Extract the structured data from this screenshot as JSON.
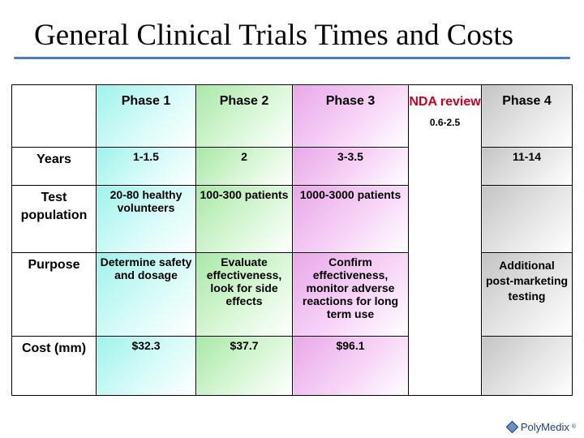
{
  "title": "General Clinical Trials Times and Costs",
  "header": {
    "corner": "",
    "phase1": "Phase 1",
    "phase2": "Phase 2",
    "phase3": "Phase 3",
    "nda_label": "NDA review",
    "nda_years": "0.6-2.5",
    "phase4": "Phase 4"
  },
  "rows": {
    "years": {
      "label": "Years",
      "p1": "1-1.5",
      "p2": "2",
      "p3": "3-3.5",
      "p4": "11-14"
    },
    "population": {
      "label": "Test population",
      "p1": "20-80 healthy volunteers",
      "p2": "100-300 patients",
      "p3": "1000-3000 patients",
      "p4": ""
    },
    "purpose": {
      "label": "Purpose",
      "p1": "Determine safety and dosage",
      "p2": "Evaluate effectiveness, look for side effects",
      "p3": "Confirm effectiveness, monitor adverse reactions for long term use",
      "p4": "Additional post-marketing testing"
    },
    "cost": {
      "label": "Cost (mm)",
      "p1": "$32.3",
      "p2": "$37.7",
      "p3": "$96.1",
      "p4": ""
    }
  },
  "logo": {
    "text": "PolyMedix",
    "mark": "®"
  },
  "colors": {
    "title_rule": "#4a7ebf",
    "row_label": "#cc0022",
    "phase1": "#9ff2ec",
    "phase2": "#a9e8a6",
    "phase3": "#e8a8e8",
    "phase4": "#c4c4c4"
  }
}
